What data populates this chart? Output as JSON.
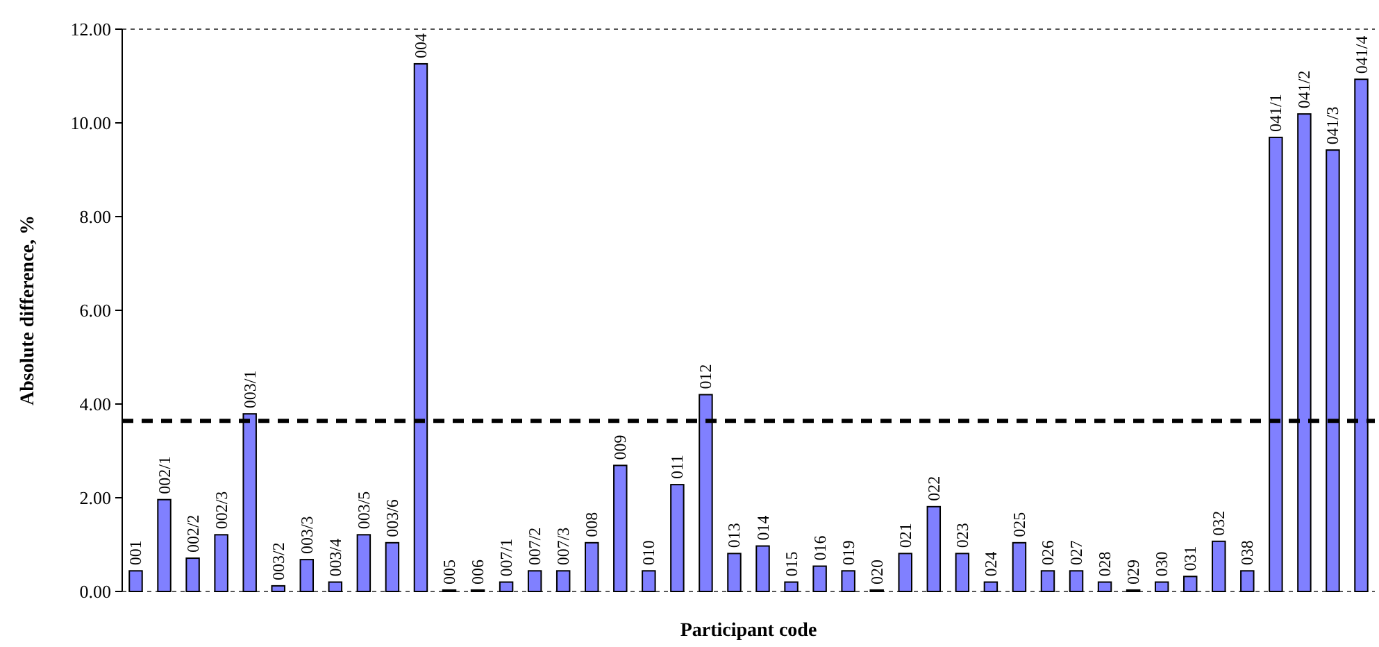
{
  "chart_data": {
    "type": "bar",
    "xlabel": "Participant code",
    "ylabel": "Absolute difference, %",
    "categories": [
      "001",
      "002/1",
      "002/2",
      "002/3",
      "003/1",
      "003/2",
      "003/3",
      "003/4",
      "003/5",
      "003/6",
      "004",
      "005",
      "006",
      "007/1",
      "007/2",
      "007/3",
      "008",
      "009",
      "010",
      "011",
      "012",
      "013",
      "014",
      "015",
      "016",
      "019",
      "020",
      "021",
      "022",
      "023",
      "024",
      "025",
      "026",
      "027",
      "028",
      "029",
      "030",
      "031",
      "032",
      "038",
      "041/1",
      "041/2",
      "041/3",
      "041/4"
    ],
    "series": [
      {
        "color": "#8080ff",
        "values": [
          0.44,
          1.96,
          0.71,
          1.21,
          3.79,
          0.12,
          0.68,
          0.2,
          1.21,
          1.04,
          11.26,
          0.03,
          0.03,
          0.2,
          0.44,
          0.44,
          1.04,
          2.69,
          0.44,
          2.28,
          4.2,
          0.81,
          0.97,
          0.2,
          0.54,
          0.44,
          0.03,
          0.81,
          1.81,
          0.81,
          0.2,
          1.04,
          0.44,
          0.44,
          0.2,
          0.03,
          0.2,
          0.32,
          1.07,
          0.44,
          9.69,
          10.19,
          9.42,
          10.93
        ]
      }
    ],
    "ylim": [
      0,
      12
    ],
    "yticks": [
      {
        "value": 0,
        "label": "0.00"
      },
      {
        "value": 2,
        "label": "2.00"
      },
      {
        "value": 4,
        "label": "4.00"
      },
      {
        "value": 6,
        "label": "6.00"
      },
      {
        "value": 8,
        "label": "8.00"
      },
      {
        "value": 10,
        "label": "10.00"
      },
      {
        "value": 12,
        "label": "12.00"
      }
    ],
    "ref_lines": [
      {
        "axis": "y",
        "value": 3.64,
        "color": "#000000",
        "line_style": "dashed"
      }
    ],
    "grid": false
  }
}
